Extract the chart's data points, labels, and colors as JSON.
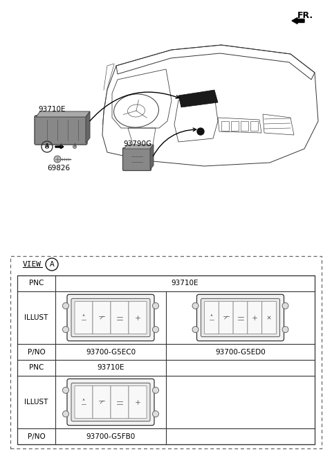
{
  "bg_color": "#ffffff",
  "fig_width": 4.8,
  "fig_height": 6.56,
  "dpi": 100,
  "fr_label": "FR.",
  "label_93710E": "93710E",
  "label_93790G": "93790G",
  "label_69826": "69826",
  "view_label": "VIEW",
  "circle_A": "A",
  "pnc_label": "PNC",
  "pnc_value": "93710E",
  "illust_label": "ILLUST",
  "pno_label": "P/NO",
  "pno1_left": "93700-G5EC0",
  "pno1_right": "93700-G5ED0",
  "pno2": "93700-G5FB0"
}
